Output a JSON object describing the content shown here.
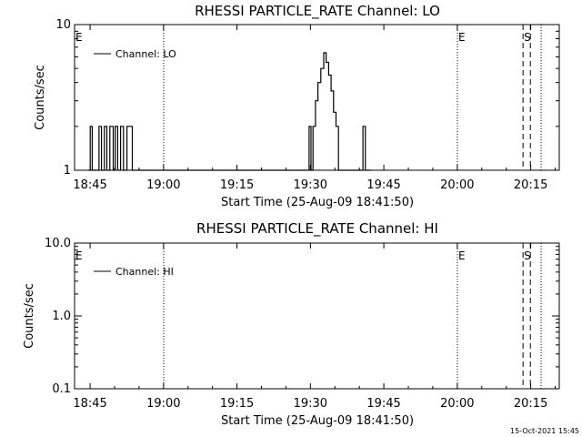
{
  "footer": {
    "timestamp": "15-Oct-2021 15:45"
  },
  "chart_data": [
    {
      "type": "line",
      "title": "RHESSI PARTICLE_RATE Channel: LO",
      "xlabel": "Start Time (25-Aug-09 18:41:50)",
      "ylabel": "Counts/sec",
      "yscale": "log",
      "ylim": [
        1,
        10
      ],
      "y_tick_labels": [
        "1",
        "10"
      ],
      "xlim_minutes_after_start": [
        0,
        99
      ],
      "x_tick_labels": [
        "18:45",
        "19:00",
        "19:15",
        "19:30",
        "19:45",
        "20:00",
        "20:15"
      ],
      "x_tick_minutes": [
        3.17,
        18.17,
        33.17,
        48.17,
        63.17,
        78.17,
        93.17
      ],
      "legend": {
        "position": "top-left",
        "entries": [
          "Channel: LO"
        ]
      },
      "markers": [
        {
          "label": "E",
          "minute": 0.0,
          "style": "none"
        },
        {
          "label": "",
          "minute": 18.2,
          "style": "dotted"
        },
        {
          "label": "E",
          "minute": 78.2,
          "style": "dotted"
        },
        {
          "label": "S",
          "minute": 91.6,
          "style": "dashed"
        },
        {
          "label": "",
          "minute": 93.1,
          "style": "dashed"
        },
        {
          "label": "",
          "minute": 95.3,
          "style": "dotted"
        }
      ],
      "series": [
        {
          "name": "Channel: LO",
          "x": [
            2.8,
            3.2,
            3.2,
            3.6,
            3.6,
            5.0,
            5.0,
            5.5,
            5.5,
            6.1,
            6.1,
            6.6,
            6.6,
            7.2,
            7.2,
            7.9,
            7.9,
            8.3,
            8.3,
            8.8,
            8.8,
            9.4,
            9.4,
            10.0,
            10.0,
            10.7,
            10.7,
            11.8,
            11.8,
            12.4,
            12.4,
            47.9,
            47.9,
            48.3,
            48.3,
            48.7,
            48.7,
            49.2,
            49.2,
            49.7,
            49.7,
            50.3,
            50.3,
            50.9,
            50.9,
            51.4,
            51.4,
            51.9,
            51.9,
            52.4,
            52.4,
            52.9,
            52.9,
            53.4,
            53.4,
            53.9,
            53.9,
            54.4,
            54.4,
            55.0,
            55.0,
            55.6,
            55.6,
            56.1,
            56.1,
            56.6,
            56.6,
            57.2,
            57.2,
            57.8,
            57.8,
            58.4,
            58.4,
            58.9,
            58.9,
            59.4,
            59.4,
            59.9,
            59.9,
            60.6
          ],
          "y": [
            1,
            1,
            2,
            2,
            1,
            1,
            2,
            2,
            1,
            1,
            2,
            2,
            1,
            1,
            2,
            2,
            1,
            1,
            2,
            2,
            1,
            1,
            2,
            2,
            1,
            1,
            2,
            2,
            1,
            1,
            1,
            1,
            2,
            2,
            1,
            1,
            2,
            2,
            3,
            3,
            4,
            4,
            5,
            5,
            6.4,
            6.4,
            5.5,
            5.5,
            4.5,
            4.5,
            3.5,
            3.5,
            2.5,
            2.5,
            2,
            2,
            1,
            1,
            1,
            1,
            1,
            1,
            1,
            1,
            1,
            1,
            1,
            1,
            1,
            1,
            1,
            1,
            1,
            1,
            2,
            2,
            1,
            1,
            1,
            1
          ]
        }
      ]
    },
    {
      "type": "line",
      "title": "RHESSI PARTICLE_RATE Channel: HI",
      "xlabel": "Start Time (25-Aug-09 18:41:50)",
      "ylabel": "Counts/sec",
      "yscale": "log",
      "ylim": [
        0.1,
        10
      ],
      "y_tick_labels": [
        "0.1",
        "1.0",
        "10.0"
      ],
      "xlim_minutes_after_start": [
        0,
        99
      ],
      "x_tick_labels": [
        "18:45",
        "19:00",
        "19:15",
        "19:30",
        "19:45",
        "20:00",
        "20:15"
      ],
      "x_tick_minutes": [
        3.17,
        18.17,
        33.17,
        48.17,
        63.17,
        78.17,
        93.17
      ],
      "legend": {
        "position": "top-left",
        "entries": [
          "Channel: HI"
        ]
      },
      "markers": [
        {
          "label": "E",
          "minute": 0.0,
          "style": "none"
        },
        {
          "label": "",
          "minute": 18.2,
          "style": "dotted"
        },
        {
          "label": "E",
          "minute": 78.2,
          "style": "dotted"
        },
        {
          "label": "S",
          "minute": 91.6,
          "style": "dashed"
        },
        {
          "label": "",
          "minute": 93.1,
          "style": "dashed"
        },
        {
          "label": "",
          "minute": 95.3,
          "style": "dotted"
        }
      ],
      "series": [
        {
          "name": "Channel: HI",
          "x": [],
          "y": []
        }
      ]
    }
  ]
}
